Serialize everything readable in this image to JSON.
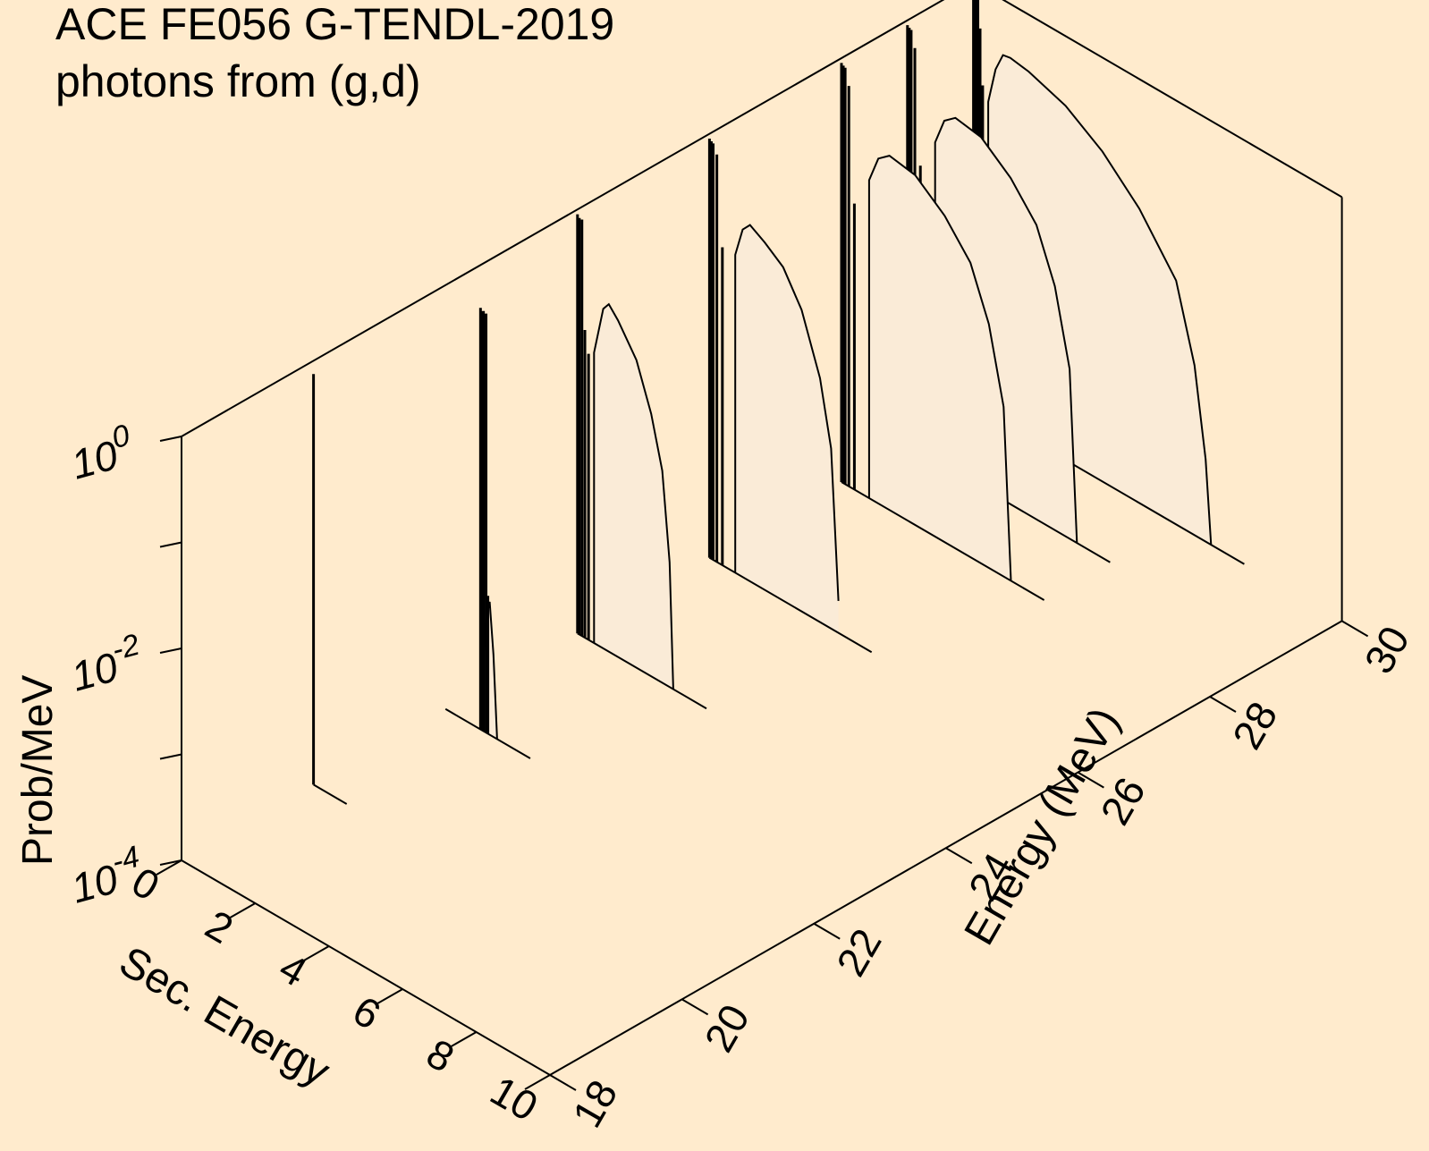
{
  "chart_data": {
    "type": "3d-waterfall",
    "title": "ACE FE056 G-TENDL-2019",
    "subtitle": "photons from (g,d)",
    "z_axis": {
      "label": "Prob/MeV",
      "scale": "log",
      "ticks": [
        {
          "value": 0.0001,
          "base": "10",
          "exp": "-4"
        },
        {
          "value": 0.01,
          "base": "10",
          "exp": "-2"
        },
        {
          "value": 1,
          "base": "10",
          "exp": "0"
        }
      ],
      "range": [
        0.0001,
        1
      ]
    },
    "x_axis": {
      "label": "Sec. Energy",
      "range": [
        0,
        10
      ],
      "ticks": [
        "0",
        "2",
        "4",
        "6",
        "8",
        "10"
      ]
    },
    "y_axis": {
      "label": "Energy (MeV)",
      "range": [
        18,
        30
      ],
      "ticks": [
        "18",
        "20",
        "22",
        "24",
        "26",
        "28",
        "30"
      ]
    },
    "spectra": [
      {
        "incident_energy": 20,
        "lines": [
          [
            0.0,
            0.75
          ]
        ],
        "continuum": []
      },
      {
        "incident_energy": 22,
        "lines": [
          [
            0.95,
            0.95
          ],
          [
            0.99,
            0.9
          ],
          [
            1.03,
            0.92
          ],
          [
            1.1,
            0.9
          ],
          [
            1.15,
            0.002
          ]
        ],
        "continuum": [
          [
            1.0,
            0.00035
          ],
          [
            1.1,
            0.0012
          ],
          [
            1.2,
            0.0018
          ],
          [
            1.3,
            0.0006
          ],
          [
            1.4,
            0.0001
          ]
        ]
      },
      {
        "incident_energy": 24,
        "lines": [
          [
            0.0,
            0.9
          ],
          [
            0.05,
            0.85
          ],
          [
            0.12,
            0.85
          ],
          [
            0.2,
            0.08
          ],
          [
            0.3,
            0.05
          ]
        ],
        "continuum": [
          [
            0.45,
            0.055
          ],
          [
            0.7,
            0.16
          ],
          [
            0.85,
            0.19
          ],
          [
            1.1,
            0.15
          ],
          [
            1.6,
            0.08
          ],
          [
            2.0,
            0.03
          ],
          [
            2.3,
            0.01
          ],
          [
            2.5,
            0.0015
          ],
          [
            2.6,
            0.0001
          ]
        ]
      },
      {
        "incident_energy": 26,
        "lines": [
          [
            0.0,
            0.9
          ],
          [
            0.05,
            0.87
          ],
          [
            0.1,
            0.85
          ],
          [
            0.2,
            0.7
          ],
          [
            0.35,
            0.1
          ]
        ],
        "continuum": [
          [
            0.7,
            0.1
          ],
          [
            0.9,
            0.19
          ],
          [
            1.1,
            0.23
          ],
          [
            1.5,
            0.19
          ],
          [
            2.0,
            0.14
          ],
          [
            2.5,
            0.07
          ],
          [
            3.0,
            0.02
          ],
          [
            3.3,
            0.005
          ],
          [
            3.5,
            0.0002
          ]
        ]
      },
      {
        "incident_energy": 28,
        "lines": [
          [
            0.0,
            0.9
          ],
          [
            0.05,
            0.87
          ],
          [
            0.1,
            0.85
          ],
          [
            0.2,
            0.6
          ],
          [
            0.35,
            0.05
          ]
        ],
        "continuum": [
          [
            0.75,
            0.1
          ],
          [
            1.0,
            0.18
          ],
          [
            1.3,
            0.22
          ],
          [
            2.0,
            0.2
          ],
          [
            2.8,
            0.12
          ],
          [
            3.5,
            0.06
          ],
          [
            4.0,
            0.02
          ],
          [
            4.4,
            0.004
          ],
          [
            4.6,
            0.0001
          ]
        ]
      },
      {
        "incident_energy": 29,
        "lines": [
          [
            0.0,
            0.9
          ],
          [
            0.05,
            0.87
          ],
          [
            0.1,
            0.85
          ],
          [
            0.2,
            0.6
          ],
          [
            0.35,
            0.05
          ]
        ],
        "continuum": [
          [
            0.75,
            0.1
          ],
          [
            1.0,
            0.18
          ],
          [
            1.3,
            0.22
          ],
          [
            2.0,
            0.2
          ],
          [
            2.8,
            0.12
          ],
          [
            3.5,
            0.06
          ],
          [
            4.0,
            0.02
          ],
          [
            4.4,
            0.004
          ],
          [
            4.6,
            0.0001
          ]
        ]
      },
      {
        "incident_energy": 30,
        "lines": [
          [
            0.0,
            0.95
          ],
          [
            0.03,
            0.93
          ],
          [
            0.06,
            0.9
          ],
          [
            0.12,
            0.9
          ],
          [
            0.18,
            0.4
          ],
          [
            0.25,
            0.12
          ]
        ],
        "continuum": [
          [
            0.4,
            0.09
          ],
          [
            0.6,
            0.2
          ],
          [
            0.8,
            0.3
          ],
          [
            1.0,
            0.31
          ],
          [
            1.5,
            0.29
          ],
          [
            2.5,
            0.22
          ],
          [
            3.5,
            0.13
          ],
          [
            4.5,
            0.06
          ],
          [
            5.5,
            0.02
          ],
          [
            6.0,
            0.004
          ],
          [
            6.3,
            0.0006
          ],
          [
            6.45,
            0.0001
          ]
        ]
      }
    ]
  }
}
